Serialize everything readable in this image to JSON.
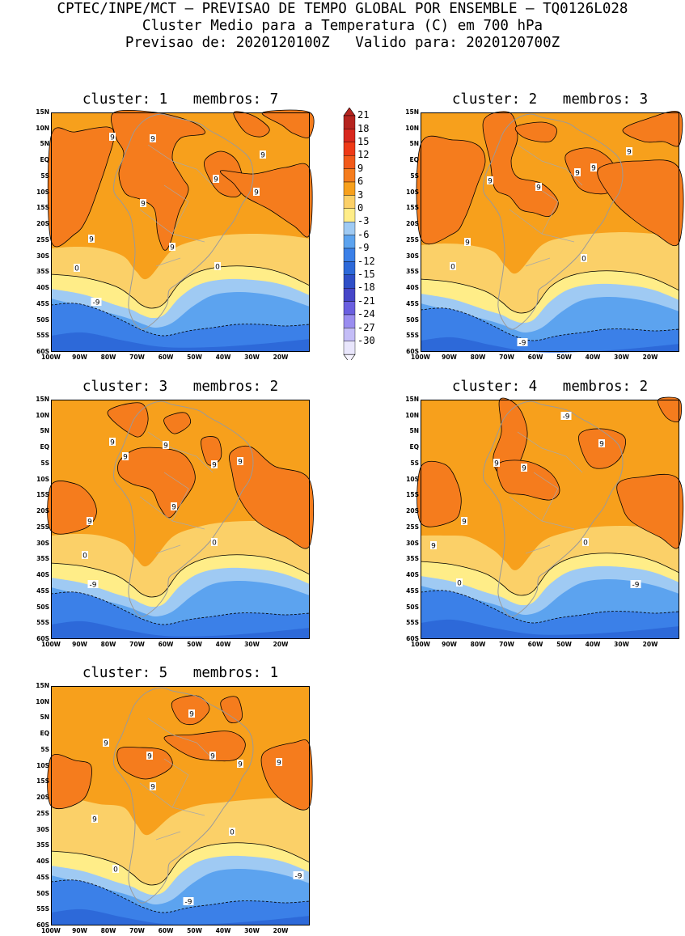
{
  "header": {
    "line1": "CPTEC/INPE/MCT — PREVISAO DE TEMPO GLOBAL POR ENSEMBLE — TQ0126L028",
    "line2": "Cluster Medio para a Temperatura (C) em 700 hPa",
    "line3": "Previsao de: 2020120100Z   Valido para: 2020120700Z"
  },
  "axes": {
    "lat_labels": [
      "15N",
      "10N",
      "5N",
      "EQ",
      "5S",
      "10S",
      "15S",
      "20S",
      "25S",
      "30S",
      "35S",
      "40S",
      "45S",
      "50S",
      "55S",
      "60S"
    ],
    "lon_labels": [
      "100W",
      "90W",
      "80W",
      "70W",
      "60W",
      "50W",
      "40W",
      "30W",
      "20W"
    ]
  },
  "colorbar": {
    "labels": [
      "21",
      "18",
      "15",
      "12",
      "9",
      "6",
      "3",
      "0",
      "-3",
      "-6",
      "-9",
      "-12",
      "-15",
      "-18",
      "-21",
      "-24",
      "-27",
      "-30"
    ],
    "colors": {
      "c21": "#b5241f",
      "c18": "#d8281e",
      "c15": "#ee3a17",
      "c12": "#f25a1a",
      "c9": "#f57c1d",
      "c6": "#f7a01c",
      "c3": "#fbd068",
      "c0": "#ffed88",
      "cm3": "#9fcaf3",
      "cm6": "#5ca3ef",
      "cm9": "#3b80e8",
      "cm12": "#2d69d9",
      "cm15": "#2f4fc7",
      "cm18": "#4646c8",
      "cm21": "#6a5fe0",
      "cm24": "#9a8df0",
      "cm27": "#c4bdf7",
      "cm30": "#e9e6fc"
    }
  },
  "clusters": [
    {
      "label": "cluster: 1",
      "members": "membros: 7",
      "contours": [
        "9",
        "9",
        "9",
        "9",
        "9",
        "9",
        "9",
        "9",
        "0",
        "0",
        "-9"
      ]
    },
    {
      "label": "cluster: 2",
      "members": "membros: 3",
      "contours": [
        "9",
        "9",
        "9",
        "9",
        "9",
        "9",
        "0",
        "0",
        "-9"
      ]
    },
    {
      "label": "cluster: 3",
      "members": "membros: 2",
      "contours": [
        "9",
        "9",
        "9",
        "9",
        "9",
        "9",
        "9",
        "0",
        "0",
        "-9"
      ]
    },
    {
      "label": "cluster: 4",
      "members": "membros: 2",
      "contours": [
        "9",
        "9",
        "9",
        "9",
        "9",
        "0",
        "0",
        "-9",
        "-9"
      ]
    },
    {
      "label": "cluster: 5",
      "members": "membros: 1",
      "contours": [
        "9",
        "9",
        "9",
        "9",
        "9",
        "9",
        "9",
        "9",
        "0",
        "0",
        "-9",
        "-9"
      ]
    }
  ]
}
